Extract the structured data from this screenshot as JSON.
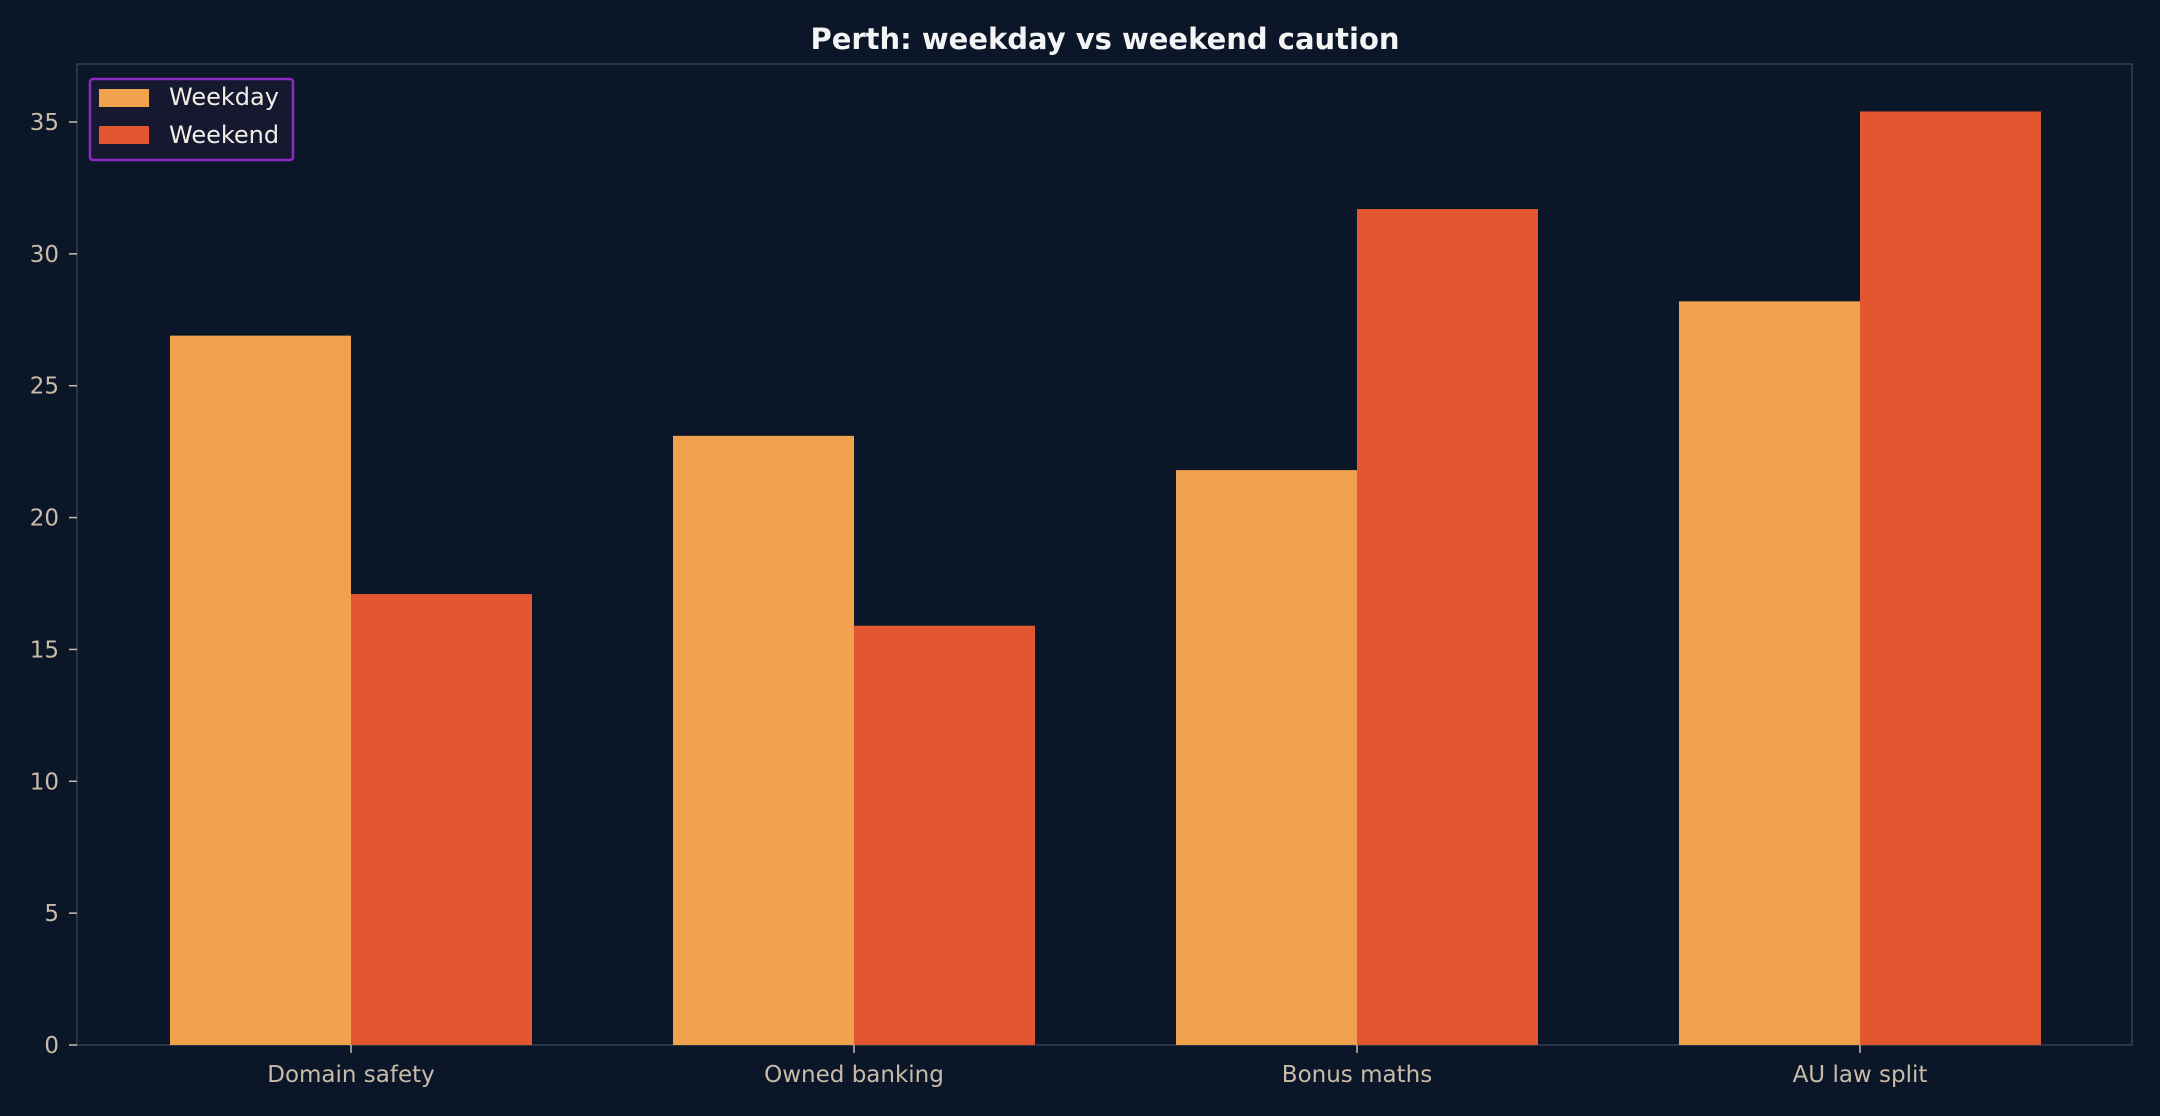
{
  "chart_data": {
    "type": "bar",
    "title": "Perth: weekday vs weekend caution",
    "xlabel": "",
    "ylabel": "",
    "categories": [
      "Domain safety",
      "Owned banking",
      "Bonus maths",
      "AU law split"
    ],
    "series": [
      {
        "name": "Weekday",
        "values": [
          26.9,
          23.1,
          21.8,
          28.2
        ],
        "color": "#f0a24e"
      },
      {
        "name": "Weekend",
        "values": [
          17.1,
          15.9,
          31.7,
          35.4
        ],
        "color": "#e35730"
      }
    ],
    "ylim": [
      0,
      37.2
    ],
    "yticks": [
      0,
      5,
      10,
      15,
      20,
      25,
      30,
      35
    ],
    "grid": false,
    "legend": "top-left"
  },
  "colors": {
    "background": "#0b1628",
    "axis": "#2a3548",
    "tick_text": "#c8bca8",
    "legend_border": "#8a2bc4",
    "legend_bg": "#15182e"
  }
}
